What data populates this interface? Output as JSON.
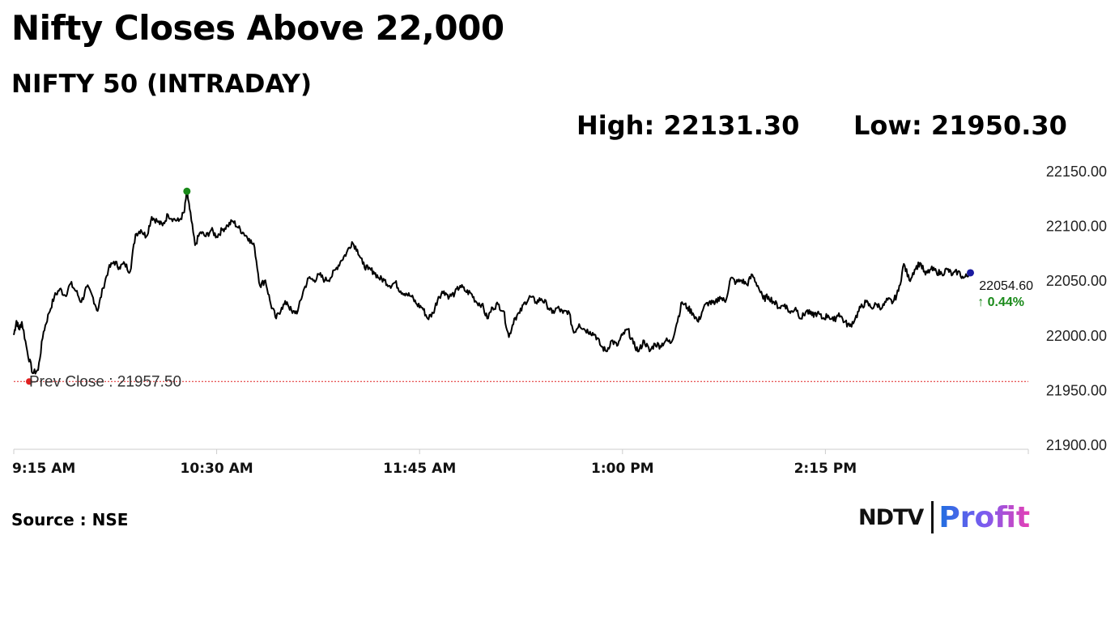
{
  "header": {
    "title": "Nifty Closes Above 22,000",
    "subtitle": "NIFTY 50 (INTRADAY)",
    "high": "High: 22131.30",
    "low": "Low: 21950.30"
  },
  "footer": {
    "source": "Source : NSE",
    "logo_primary": "NDTV",
    "logo_secondary": "Profit"
  },
  "colors": {
    "line": "#000000",
    "prev_close": "#e02020",
    "high_marker": "#1a8a1a",
    "last_marker": "#1a1aa0",
    "change_up": "#1a8a1a",
    "axis": "#cccccc"
  },
  "chart_data": {
    "type": "line",
    "x_unit": "time",
    "x_start": "9:15 AM",
    "x_end": "3:30 PM",
    "ylim": [
      21900,
      22150
    ],
    "yticks": [
      "22150.00",
      "22100.00",
      "22050.00",
      "22000.00",
      "21950.00",
      "21900.00"
    ],
    "xticks": [
      "9:15 AM",
      "10:30 AM",
      "11:45 AM",
      "1:00 PM",
      "2:15 PM"
    ],
    "prev_close": 21957.5,
    "prev_close_label": "Prev Close : 21957.50",
    "last_value_label": "22054.60",
    "change_label": "↑ 0.44%",
    "high_point": {
      "time": "10:19 AM",
      "value": 22131.3
    },
    "series": [
      {
        "values": [
          [
            "9:15",
            22000
          ],
          [
            "9:16",
            22013
          ],
          [
            "9:17",
            22005
          ],
          [
            "9:18",
            22012
          ],
          [
            "9:20",
            21985
          ],
          [
            "9:22",
            21965
          ],
          [
            "9:24",
            21968
          ],
          [
            "9:26",
            22003
          ],
          [
            "9:28",
            22020
          ],
          [
            "9:30",
            22035
          ],
          [
            "9:32",
            22042
          ],
          [
            "9:34",
            22036
          ],
          [
            "9:36",
            22047
          ],
          [
            "9:38",
            22040
          ],
          [
            "9:40",
            22030
          ],
          [
            "9:42",
            22044
          ],
          [
            "9:44",
            22036
          ],
          [
            "9:46",
            22022
          ],
          [
            "9:48",
            22043
          ],
          [
            "9:50",
            22060
          ],
          [
            "9:52",
            22067
          ],
          [
            "9:54",
            22062
          ],
          [
            "9:56",
            22065
          ],
          [
            "9:58",
            22058
          ],
          [
            "10:00",
            22092
          ],
          [
            "10:02",
            22096
          ],
          [
            "10:04",
            22090
          ],
          [
            "10:06",
            22108
          ],
          [
            "10:08",
            22104
          ],
          [
            "10:10",
            22100
          ],
          [
            "10:12",
            22110
          ],
          [
            "10:14",
            22106
          ],
          [
            "10:16",
            22104
          ],
          [
            "10:18",
            22112
          ],
          [
            "10:19",
            22131.3
          ],
          [
            "10:20",
            22115
          ],
          [
            "10:22",
            22082
          ],
          [
            "10:24",
            22094
          ],
          [
            "10:26",
            22090
          ],
          [
            "10:28",
            22096
          ],
          [
            "10:30",
            22090
          ],
          [
            "10:32",
            22096
          ],
          [
            "10:34",
            22100
          ],
          [
            "10:36",
            22104
          ],
          [
            "10:38",
            22098
          ],
          [
            "10:40",
            22093
          ],
          [
            "10:42",
            22088
          ],
          [
            "10:44",
            22080
          ],
          [
            "10:46",
            22045
          ],
          [
            "10:48",
            22050
          ],
          [
            "10:50",
            22028
          ],
          [
            "10:52",
            22015
          ],
          [
            "10:54",
            22025
          ],
          [
            "10:56",
            22030
          ],
          [
            "10:58",
            22020
          ],
          [
            "11:00",
            22022
          ],
          [
            "11:02",
            22040
          ],
          [
            "11:04",
            22052
          ],
          [
            "11:06",
            22050
          ],
          [
            "11:08",
            22055
          ],
          [
            "11:10",
            22050
          ],
          [
            "11:12",
            22052
          ],
          [
            "11:14",
            22060
          ],
          [
            "11:16",
            22068
          ],
          [
            "11:18",
            22075
          ],
          [
            "11:20",
            22085
          ],
          [
            "11:22",
            22078
          ],
          [
            "11:24",
            22065
          ],
          [
            "11:26",
            22060
          ],
          [
            "11:28",
            22058
          ],
          [
            "11:30",
            22052
          ],
          [
            "11:32",
            22050
          ],
          [
            "11:34",
            22045
          ],
          [
            "11:36",
            22048
          ],
          [
            "11:38",
            22040
          ],
          [
            "11:40",
            22038
          ],
          [
            "11:42",
            22035
          ],
          [
            "11:44",
            22028
          ],
          [
            "11:46",
            22025
          ],
          [
            "11:48",
            22015
          ],
          [
            "11:50",
            22020
          ],
          [
            "11:52",
            22035
          ],
          [
            "11:54",
            22040
          ],
          [
            "11:56",
            22035
          ],
          [
            "11:58",
            22038
          ],
          [
            "12:00",
            22045
          ],
          [
            "12:02",
            22040
          ],
          [
            "12:04",
            22038
          ],
          [
            "12:06",
            22030
          ],
          [
            "12:08",
            22028
          ],
          [
            "12:10",
            22015
          ],
          [
            "12:12",
            22025
          ],
          [
            "12:14",
            22028
          ],
          [
            "12:16",
            22022
          ],
          [
            "12:18",
            21998
          ],
          [
            "12:20",
            22015
          ],
          [
            "12:22",
            22020
          ],
          [
            "12:24",
            22030
          ],
          [
            "12:26",
            22035
          ],
          [
            "12:28",
            22030
          ],
          [
            "12:30",
            22033
          ],
          [
            "12:32",
            22028
          ],
          [
            "12:34",
            22020
          ],
          [
            "12:36",
            22025
          ],
          [
            "12:38",
            22020
          ],
          [
            "12:40",
            22022
          ],
          [
            "12:42",
            22002
          ],
          [
            "12:44",
            22010
          ],
          [
            "12:46",
            22005
          ],
          [
            "12:48",
            22003
          ],
          [
            "12:50",
            22000
          ],
          [
            "12:52",
            21990
          ],
          [
            "12:54",
            21985
          ],
          [
            "12:56",
            21995
          ],
          [
            "12:58",
            21990
          ],
          [
            "13:00",
            22000
          ],
          [
            "13:02",
            22005
          ],
          [
            "13:04",
            21992
          ],
          [
            "13:06",
            21985
          ],
          [
            "13:08",
            21995
          ],
          [
            "13:10",
            21985
          ],
          [
            "13:12",
            21992
          ],
          [
            "13:14",
            21990
          ],
          [
            "13:16",
            21995
          ],
          [
            "13:18",
            21993
          ],
          [
            "13:20",
            22010
          ],
          [
            "13:22",
            22030
          ],
          [
            "13:24",
            22025
          ],
          [
            "13:26",
            22020
          ],
          [
            "13:28",
            22012
          ],
          [
            "13:30",
            22025
          ],
          [
            "13:32",
            22030
          ],
          [
            "13:34",
            22028
          ],
          [
            "13:36",
            22035
          ],
          [
            "13:38",
            22030
          ],
          [
            "13:40",
            22052
          ],
          [
            "13:42",
            22048
          ],
          [
            "13:44",
            22050
          ],
          [
            "13:46",
            22046
          ],
          [
            "13:48",
            22055
          ],
          [
            "13:50",
            22045
          ],
          [
            "13:52",
            22033
          ],
          [
            "13:54",
            22035
          ],
          [
            "13:56",
            22030
          ],
          [
            "13:58",
            22025
          ],
          [
            "14:00",
            22028
          ],
          [
            "14:02",
            22020
          ],
          [
            "14:04",
            22025
          ],
          [
            "14:06",
            22015
          ],
          [
            "14:08",
            22022
          ],
          [
            "14:10",
            22018
          ],
          [
            "14:12",
            22020
          ],
          [
            "14:14",
            22015
          ],
          [
            "14:16",
            22018
          ],
          [
            "14:18",
            22013
          ],
          [
            "14:20",
            22020
          ],
          [
            "14:22",
            22012
          ],
          [
            "14:24",
            22008
          ],
          [
            "14:26",
            22015
          ],
          [
            "14:28",
            22025
          ],
          [
            "14:30",
            22030
          ],
          [
            "14:32",
            22025
          ],
          [
            "14:34",
            22028
          ],
          [
            "14:36",
            22025
          ],
          [
            "14:38",
            22032
          ],
          [
            "14:40",
            22030
          ],
          [
            "14:42",
            22040
          ],
          [
            "14:44",
            22065
          ],
          [
            "14:46",
            22050
          ],
          [
            "14:48",
            22060
          ],
          [
            "14:50",
            22066
          ],
          [
            "14:52",
            22055
          ],
          [
            "14:54",
            22060
          ],
          [
            "14:56",
            22058
          ],
          [
            "14:58",
            22056
          ],
          [
            "15:00",
            22060
          ],
          [
            "15:02",
            22055
          ],
          [
            "15:04",
            22058
          ],
          [
            "15:06",
            22052
          ],
          [
            "15:08",
            22054.6
          ]
        ]
      }
    ]
  }
}
